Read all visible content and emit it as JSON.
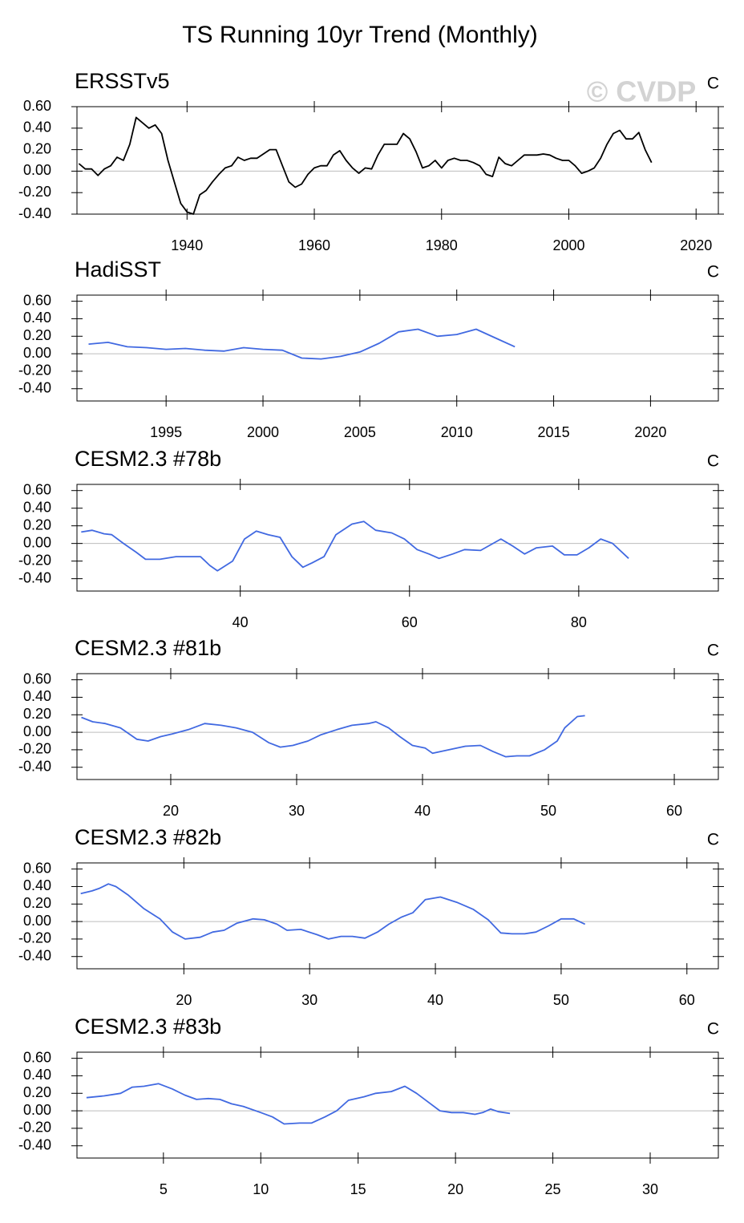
{
  "title": "TS Running 10yr Trend (Monthly)",
  "watermark": "© CVDP",
  "chart_data": [
    {
      "type": "line",
      "title": "ERSSTv5",
      "units": "C",
      "x": [
        1923,
        1924,
        1925,
        1926,
        1927,
        1928,
        1929,
        1930,
        1931,
        1932,
        1933,
        1934,
        1935,
        1936,
        1937,
        1938,
        1939,
        1940,
        1941,
        1942,
        1943,
        1944,
        1945,
        1946,
        1947,
        1948,
        1949,
        1950,
        1951,
        1952,
        1953,
        1954,
        1955,
        1956,
        1957,
        1958,
        1959,
        1960,
        1961,
        1962,
        1963,
        1964,
        1965,
        1966,
        1967,
        1968,
        1969,
        1970,
        1971,
        1972,
        1973,
        1974,
        1975,
        1976,
        1977,
        1978,
        1979,
        1980,
        1981,
        1982,
        1983,
        1984,
        1985,
        1986,
        1987,
        1988,
        1989,
        1990,
        1991,
        1992,
        1993,
        1994,
        1995,
        1996,
        1997,
        1998,
        1999,
        2000,
        2001,
        2002,
        2003,
        2004,
        2005,
        2006,
        2007,
        2008,
        2009,
        2010,
        2011,
        2012,
        2013
      ],
      "series": [
        {
          "color": "#000000",
          "values": [
            0.07,
            0.02,
            0.02,
            -0.04,
            0.02,
            0.05,
            0.13,
            0.1,
            0.25,
            0.5,
            0.45,
            0.4,
            0.43,
            0.35,
            0.1,
            -0.1,
            -0.3,
            -0.38,
            -0.4,
            -0.22,
            -0.18,
            -0.1,
            -0.03,
            0.03,
            0.05,
            0.13,
            0.1,
            0.12,
            0.12,
            0.16,
            0.2,
            0.2,
            0.05,
            -0.1,
            -0.15,
            -0.12,
            -0.03,
            0.03,
            0.05,
            0.05,
            0.15,
            0.19,
            0.1,
            0.03,
            -0.02,
            0.03,
            0.02,
            0.15,
            0.25,
            0.25,
            0.25,
            0.35,
            0.3,
            0.18,
            0.03,
            0.05,
            0.1,
            0.03,
            0.1,
            0.12,
            0.1,
            0.1,
            0.08,
            0.05,
            -0.03,
            -0.05,
            0.13,
            0.07,
            0.05,
            0.1,
            0.15,
            0.15,
            0.15,
            0.16,
            0.15,
            0.12,
            0.1,
            0.1,
            0.05,
            -0.02,
            0.0,
            0.03,
            0.12,
            0.25,
            0.35,
            0.38,
            0.3,
            0.3,
            0.36,
            0.2,
            0.08
          ]
        }
      ],
      "xlim": [
        1922.7,
        2023.5
      ],
      "xticks": [
        1940,
        1960,
        1980,
        2000,
        2020
      ],
      "ylim": [
        -0.4,
        0.6
      ],
      "yticks": [
        {
          "value": 0.6,
          "label": "0.60"
        },
        {
          "value": 0.4,
          "label": "0.40"
        },
        {
          "value": 0.2,
          "label": "0.20"
        },
        {
          "value": 0,
          "label": "0.00"
        },
        {
          "value": -0.2,
          "label": "-0.20"
        },
        {
          "value": -0.4,
          "label": "-0.40"
        }
      ],
      "zero_line": true
    },
    {
      "type": "line",
      "title": "HadiSST",
      "units": "C",
      "x": [
        1991,
        1992,
        1993,
        1994,
        1995,
        1996,
        1997,
        1998,
        1999,
        2000,
        2001,
        2002,
        2003,
        2004,
        2005,
        2006,
        2007,
        2008,
        2009,
        2010,
        2011,
        2012,
        2013
      ],
      "series": [
        {
          "color": "#4169e1",
          "values": [
            0.11,
            0.13,
            0.08,
            0.07,
            0.05,
            0.06,
            0.04,
            0.03,
            0.07,
            0.05,
            0.04,
            -0.05,
            -0.06,
            -0.03,
            0.02,
            0.12,
            0.25,
            0.28,
            0.2,
            0.22,
            0.28,
            0.18,
            0.08
          ]
        }
      ],
      "xlim": [
        1990.4,
        2023.5
      ],
      "xticks": [
        1995,
        2000,
        2005,
        2010,
        2015,
        2020
      ],
      "ylim": [
        -0.54,
        0.67
      ],
      "yticks": [
        {
          "value": 0.6,
          "label": "0.60"
        },
        {
          "value": 0.4,
          "label": "0.40"
        },
        {
          "value": 0.2,
          "label": "0.20"
        },
        {
          "value": 0,
          "label": "0.00"
        },
        {
          "value": -0.2,
          "label": "-0.20"
        },
        {
          "value": -0.4,
          "label": "-0.40"
        }
      ],
      "zero_line": true
    },
    {
      "type": "line",
      "title": "CESM2.3 #78b",
      "units": "C",
      "x": [
        21.2,
        22.5,
        23.9,
        24.8,
        26.2,
        27.7,
        28.8,
        30.5,
        32.4,
        33.8,
        35.3,
        36.4,
        37.3,
        39.1,
        40.5,
        41.9,
        43.3,
        44.7,
        46.1,
        47.4,
        48.5,
        49.9,
        51.3,
        53.2,
        54.6,
        56.0,
        57.9,
        59.4,
        60.9,
        62.3,
        63.5,
        65.1,
        66.5,
        68.4,
        70.8,
        72.2,
        73.6,
        75.0,
        76.9,
        78.3,
        79.8,
        81.2,
        82.6,
        84.0,
        85.9
      ],
      "series": [
        {
          "color": "#4169e1",
          "values": [
            0.13,
            0.15,
            0.11,
            0.1,
            0.0,
            -0.1,
            -0.18,
            -0.18,
            -0.15,
            -0.15,
            -0.15,
            -0.25,
            -0.31,
            -0.2,
            0.05,
            0.14,
            0.1,
            0.07,
            -0.15,
            -0.27,
            -0.22,
            -0.15,
            0.1,
            0.22,
            0.25,
            0.15,
            0.12,
            0.05,
            -0.07,
            -0.12,
            -0.17,
            -0.12,
            -0.07,
            -0.08,
            0.05,
            -0.03,
            -0.12,
            -0.05,
            -0.03,
            -0.13,
            -0.13,
            -0.05,
            0.05,
            0.0,
            -0.17
          ]
        }
      ],
      "xlim": [
        20.7,
        96.5
      ],
      "xticks": [
        40,
        60,
        80
      ],
      "ylim": [
        -0.54,
        0.67
      ],
      "yticks": [
        {
          "value": 0.6,
          "label": "0.60"
        },
        {
          "value": 0.4,
          "label": "0.40"
        },
        {
          "value": 0.2,
          "label": "0.20"
        },
        {
          "value": 0,
          "label": "0.00"
        },
        {
          "value": -0.2,
          "label": "-0.20"
        },
        {
          "value": -0.4,
          "label": "-0.40"
        }
      ],
      "zero_line": true
    },
    {
      "type": "line",
      "title": "CESM2.3 #81b",
      "units": "C",
      "x": [
        12.9,
        13.8,
        14.8,
        16.0,
        17.3,
        18.2,
        19.2,
        20.1,
        21.4,
        22.7,
        24.0,
        25.2,
        26.5,
        27.8,
        28.7,
        29.7,
        30.9,
        31.9,
        33.2,
        34.4,
        35.7,
        36.3,
        37.3,
        38.2,
        39.2,
        40.2,
        40.8,
        42.1,
        43.4,
        44.6,
        45.6,
        46.6,
        47.5,
        48.5,
        49.7,
        50.7,
        51.3,
        52.3,
        52.9
      ],
      "series": [
        {
          "color": "#4169e1",
          "values": [
            0.17,
            0.12,
            0.1,
            0.05,
            -0.08,
            -0.1,
            -0.05,
            -0.02,
            0.03,
            0.1,
            0.08,
            0.05,
            0.0,
            -0.12,
            -0.17,
            -0.15,
            -0.1,
            -0.03,
            0.03,
            0.08,
            0.1,
            0.12,
            0.05,
            -0.05,
            -0.15,
            -0.18,
            -0.24,
            -0.2,
            -0.16,
            -0.15,
            -0.22,
            -0.28,
            -0.27,
            -0.27,
            -0.2,
            -0.1,
            0.05,
            0.18,
            0.19
          ]
        }
      ],
      "xlim": [
        12.55,
        63.5
      ],
      "xticks": [
        20,
        30,
        40,
        50,
        60
      ],
      "ylim": [
        -0.54,
        0.67
      ],
      "yticks": [
        {
          "value": 0.6,
          "label": "0.60"
        },
        {
          "value": 0.4,
          "label": "0.40"
        },
        {
          "value": 0.2,
          "label": "0.20"
        },
        {
          "value": 0,
          "label": "0.00"
        },
        {
          "value": -0.2,
          "label": "-0.20"
        },
        {
          "value": -0.4,
          "label": "-0.40"
        }
      ],
      "zero_line": true
    },
    {
      "type": "line",
      "title": "CESM2.3 #82b",
      "units": "C",
      "x": [
        11.8,
        12.7,
        13.3,
        14.0,
        14.6,
        15.6,
        16.8,
        18.1,
        19.1,
        20.1,
        21.3,
        22.3,
        23.2,
        24.2,
        25.5,
        26.4,
        27.4,
        28.2,
        29.3,
        30.6,
        31.5,
        32.5,
        33.4,
        34.4,
        35.4,
        36.3,
        37.3,
        38.2,
        39.2,
        40.4,
        41.7,
        43.0,
        44.2,
        45.2,
        46.1,
        47.1,
        48.0,
        49.0,
        50.0,
        51.0,
        51.9
      ],
      "series": [
        {
          "color": "#4169e1",
          "values": [
            0.32,
            0.35,
            0.38,
            0.43,
            0.4,
            0.3,
            0.15,
            0.03,
            -0.12,
            -0.2,
            -0.18,
            -0.12,
            -0.1,
            -0.02,
            0.03,
            0.02,
            -0.03,
            -0.1,
            -0.09,
            -0.15,
            -0.2,
            -0.17,
            -0.17,
            -0.19,
            -0.12,
            -0.03,
            0.05,
            0.1,
            0.25,
            0.28,
            0.22,
            0.14,
            0.02,
            -0.13,
            -0.14,
            -0.14,
            -0.12,
            -0.05,
            0.03,
            0.03,
            -0.03
          ]
        }
      ],
      "xlim": [
        11.5,
        62.5
      ],
      "xticks": [
        20,
        30,
        40,
        50,
        60
      ],
      "ylim": [
        -0.54,
        0.67
      ],
      "yticks": [
        {
          "value": 0.6,
          "label": "0.60"
        },
        {
          "value": 0.4,
          "label": "0.40"
        },
        {
          "value": 0.2,
          "label": "0.20"
        },
        {
          "value": 0,
          "label": "0.00"
        },
        {
          "value": -0.2,
          "label": "-0.20"
        },
        {
          "value": -0.4,
          "label": "-0.40"
        }
      ],
      "zero_line": true
    },
    {
      "type": "line",
      "title": "CESM2.3 #83b",
      "units": "C",
      "x": [
        1.05,
        1.95,
        2.8,
        3.4,
        4.0,
        4.75,
        5.45,
        6.1,
        6.7,
        7.3,
        7.9,
        8.5,
        9.1,
        10.0,
        10.6,
        11.2,
        12.0,
        12.6,
        13.3,
        13.9,
        14.5,
        15.3,
        15.9,
        16.7,
        17.4,
        18.0,
        18.6,
        19.2,
        19.8,
        20.4,
        21.0,
        21.4,
        21.8,
        22.2,
        22.8
      ],
      "series": [
        {
          "color": "#4169e1",
          "values": [
            0.15,
            0.17,
            0.2,
            0.27,
            0.28,
            0.31,
            0.25,
            0.18,
            0.13,
            0.14,
            0.13,
            0.08,
            0.05,
            -0.02,
            -0.07,
            -0.15,
            -0.14,
            -0.14,
            -0.07,
            0.0,
            0.12,
            0.16,
            0.2,
            0.22,
            0.28,
            0.2,
            0.1,
            0.0,
            -0.02,
            -0.02,
            -0.04,
            -0.02,
            0.02,
            -0.01,
            -0.03
          ]
        }
      ],
      "xlim": [
        0.56,
        33.5
      ],
      "xticks": [
        5,
        10,
        15,
        20,
        25,
        30
      ],
      "ylim": [
        -0.54,
        0.67
      ],
      "yticks": [
        {
          "value": 0.6,
          "label": "0.60"
        },
        {
          "value": 0.4,
          "label": "0.40"
        },
        {
          "value": 0.2,
          "label": "0.20"
        },
        {
          "value": 0,
          "label": "0.00"
        },
        {
          "value": -0.2,
          "label": "-0.20"
        },
        {
          "value": -0.4,
          "label": "-0.40"
        }
      ],
      "zero_line": true
    }
  ]
}
